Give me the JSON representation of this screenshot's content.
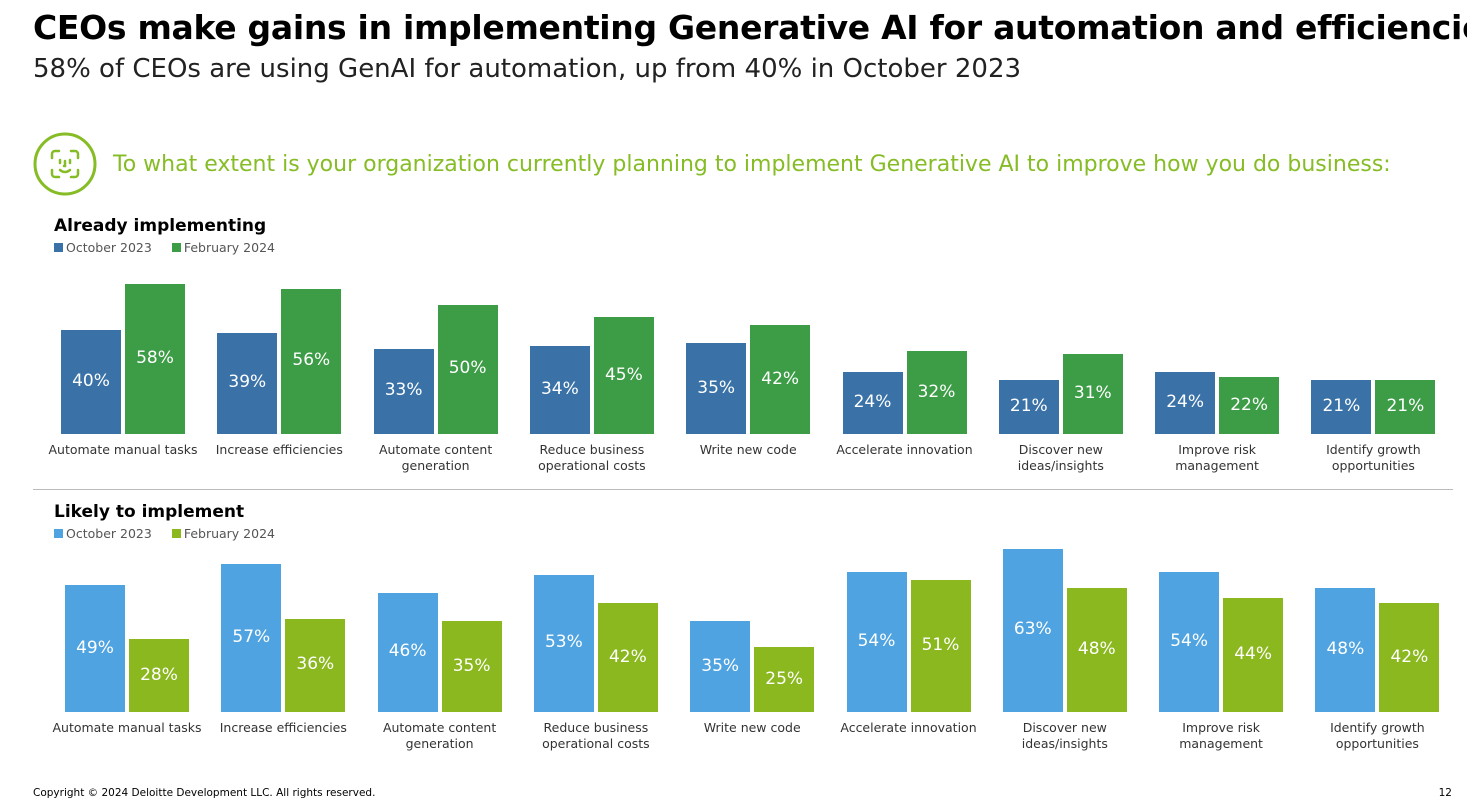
{
  "title": "CEOs make gains in implementing Generative AI for automation and efficiencies",
  "subtitle": "58% of CEOs are using GenAI for automation, up from 40% in October 2023",
  "question": "To what extent is your organization currently planning to implement Generative AI to improve how you do business:",
  "icon": "face-scan-icon",
  "footer": "Copyright © 2024 Deloitte Development LLC. All rights reserved.",
  "page_number": "12",
  "chart_data": [
    {
      "type": "bar",
      "title": "Already implementing",
      "categories": [
        "Automate manual tasks",
        "Increase efficiencies",
        "Automate content generation",
        "Reduce business operational costs",
        "Write new code",
        "Accelerate innovation",
        "Discover new ideas/insights",
        "Improve risk management",
        "Identify growth opportunities"
      ],
      "series": [
        {
          "name": "October 2023",
          "color": "#3a72a8",
          "values": [
            40,
            39,
            33,
            34,
            35,
            24,
            21,
            24,
            21
          ]
        },
        {
          "name": "February 2024",
          "color": "#3d9c46",
          "values": [
            58,
            56,
            50,
            45,
            42,
            32,
            31,
            22,
            21
          ]
        }
      ],
      "unit": "%",
      "legend": "top-left",
      "grid": false
    },
    {
      "type": "bar",
      "title": "Likely to implement",
      "categories": [
        "Automate manual tasks",
        "Increase efficiencies",
        "Automate content generation",
        "Reduce business operational costs",
        "Write new code",
        "Accelerate innovation",
        "Discover new ideas/insights",
        "Improve risk management",
        "Identify growth opportunities"
      ],
      "series": [
        {
          "name": "October 2023",
          "color": "#4fa3e0",
          "values": [
            49,
            57,
            46,
            53,
            35,
            54,
            63,
            54,
            48
          ]
        },
        {
          "name": "February 2024",
          "color": "#8ab81e",
          "values": [
            28,
            36,
            35,
            42,
            25,
            51,
            48,
            44,
            42
          ]
        }
      ],
      "unit": "%",
      "legend": "top-left",
      "grid": false
    }
  ]
}
